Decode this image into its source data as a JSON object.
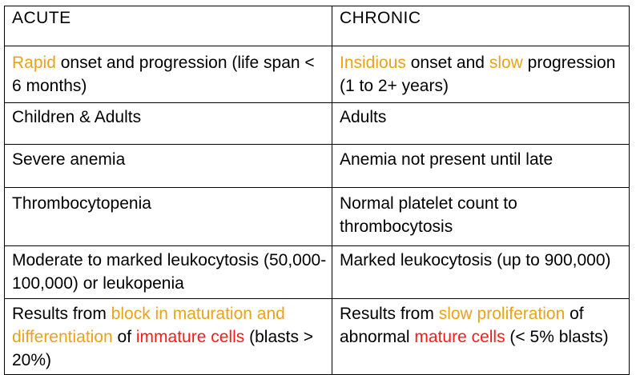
{
  "table": {
    "headers": [
      "ACUTE",
      "CHRONIC"
    ],
    "colors": {
      "highlight_yellow": "#E8A31A",
      "highlight_red": "#FF1A1A",
      "text": "#000000",
      "border": "#000000"
    },
    "rows": [
      {
        "acute": [
          {
            "text": "Rapid",
            "style": "yellow"
          },
          {
            "text": " onset and progression (life span < 6 months)",
            "style": "plain"
          }
        ],
        "chronic": [
          {
            "text": "Insidious",
            "style": "yellow"
          },
          {
            "text": " onset and ",
            "style": "plain"
          },
          {
            "text": "slow",
            "style": "yellow"
          },
          {
            "text": " progression (1 to 2+ years)",
            "style": "plain"
          }
        ]
      },
      {
        "acute": [
          {
            "text": "Children & Adults",
            "style": "plain"
          }
        ],
        "chronic": [
          {
            "text": "Adults",
            "style": "plain"
          }
        ]
      },
      {
        "acute": [
          {
            "text": "Severe anemia",
            "style": "plain"
          }
        ],
        "chronic": [
          {
            "text": "Anemia not present until late",
            "style": "plain"
          }
        ]
      },
      {
        "acute": [
          {
            "text": "Thrombocytopenia",
            "style": "plain"
          }
        ],
        "chronic": [
          {
            "text": "Normal platelet count to thrombocytosis",
            "style": "plain"
          }
        ]
      },
      {
        "acute": [
          {
            "text": "Moderate to marked leukocytosis (50,000-100,000) or leukopenia",
            "style": "plain"
          }
        ],
        "chronic": [
          {
            "text": "Marked leukocytosis (up to 900,000)",
            "style": "plain"
          }
        ]
      },
      {
        "acute": [
          {
            "text": "Results from ",
            "style": "plain"
          },
          {
            "text": "block in maturation and differentiation",
            "style": "yellow"
          },
          {
            "text": " of ",
            "style": "plain"
          },
          {
            "text": "immature cells",
            "style": "red"
          },
          {
            "text": " (blasts > 20%)",
            "style": "plain"
          }
        ],
        "chronic": [
          {
            "text": "Results from ",
            "style": "plain"
          },
          {
            "text": "slow proliferation",
            "style": "yellow"
          },
          {
            "text": " of abnormal ",
            "style": "plain"
          },
          {
            "text": "mature cells",
            "style": "red"
          },
          {
            "text": " (< 5% blasts)",
            "style": "plain"
          }
        ]
      }
    ]
  }
}
